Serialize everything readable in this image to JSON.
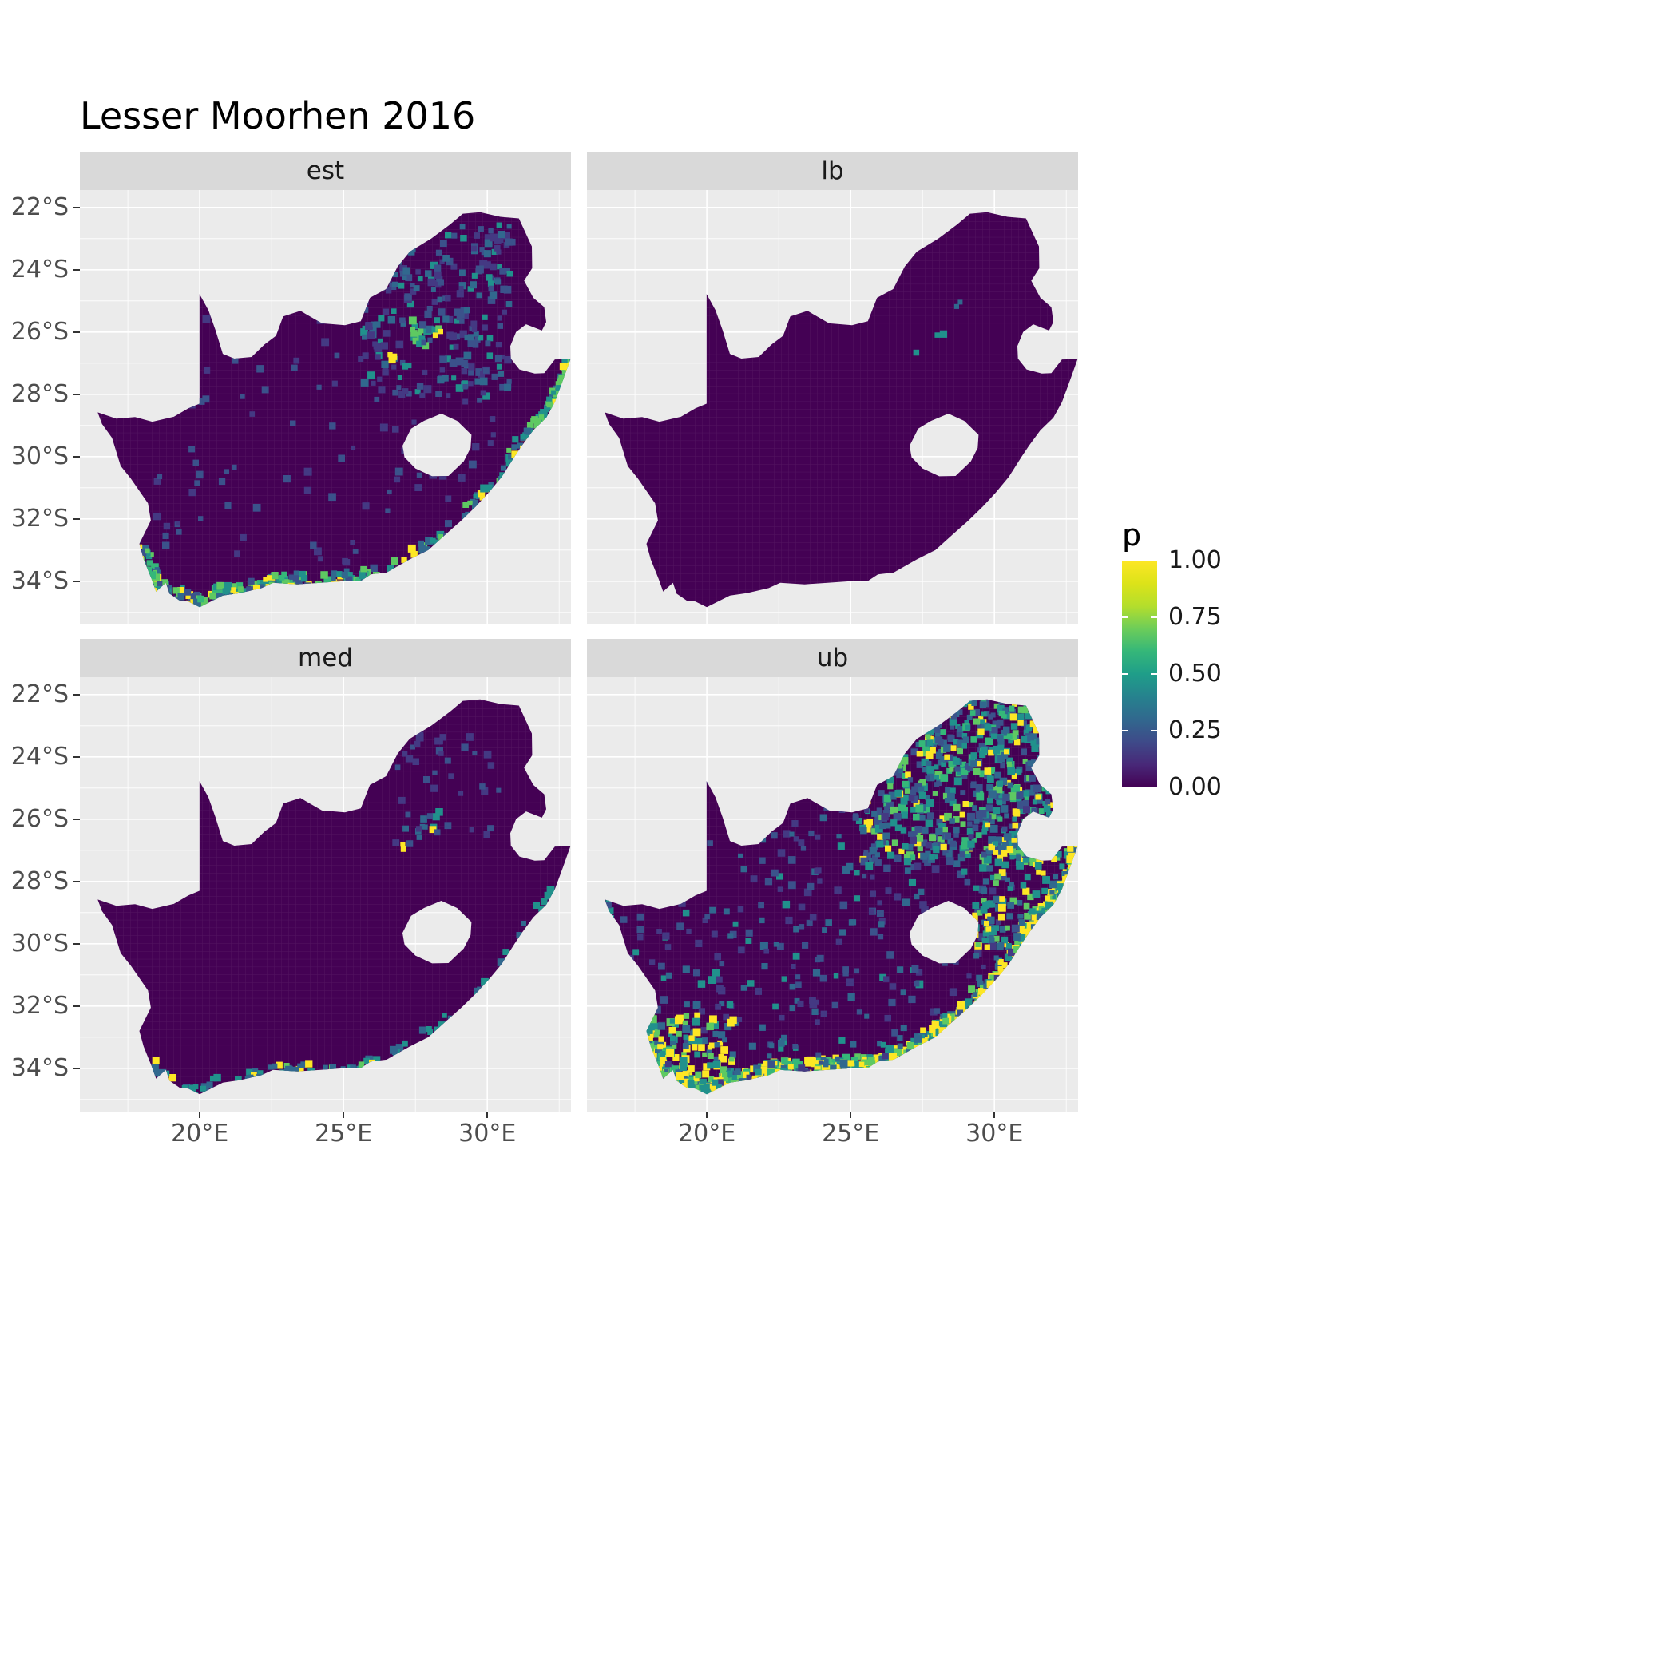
{
  "chart_data": {
    "type": "heatmap",
    "title": "Lesser Moorhen 2016",
    "facets": [
      {
        "id": "est",
        "label": "est"
      },
      {
        "id": "lb",
        "label": "lb"
      },
      {
        "id": "med",
        "label": "med"
      },
      {
        "id": "ub",
        "label": "ub"
      }
    ],
    "legend": {
      "title": "p",
      "ticks": [
        {
          "label": "1.00",
          "value": 1.0
        },
        {
          "label": "0.75",
          "value": 0.75
        },
        {
          "label": "0.50",
          "value": 0.5
        },
        {
          "label": "0.25",
          "value": 0.25
        },
        {
          "label": "0.00",
          "value": 0.0
        }
      ]
    },
    "axes": {
      "x_ticks": [
        {
          "label": "20°E",
          "lon": 20
        },
        {
          "label": "25°E",
          "lon": 25
        },
        {
          "label": "30°E",
          "lon": 30
        }
      ],
      "y_ticks": [
        {
          "label": "22°S",
          "lat": 22
        },
        {
          "label": "24°S",
          "lat": 24
        },
        {
          "label": "26°S",
          "lat": 26
        },
        {
          "label": "28°S",
          "lat": 28
        },
        {
          "label": "30°S",
          "lat": 30
        },
        {
          "label": "32°S",
          "lat": 32
        },
        {
          "label": "34°S",
          "lat": 34
        }
      ],
      "x_minor": [
        17.5,
        22.5,
        27.5,
        32.5
      ],
      "y_minor": [
        23,
        25,
        27,
        29,
        31,
        33,
        35
      ]
    },
    "palette": {
      "name": "viridis",
      "stops": [
        {
          "v": 0.0,
          "c": "#440154"
        },
        {
          "v": 0.1,
          "c": "#482878"
        },
        {
          "v": 0.2,
          "c": "#3E4A89"
        },
        {
          "v": 0.3,
          "c": "#31688E"
        },
        {
          "v": 0.4,
          "c": "#26828E"
        },
        {
          "v": 0.5,
          "c": "#1F9E89"
        },
        {
          "v": 0.6,
          "c": "#35B779"
        },
        {
          "v": 0.7,
          "c": "#6DCD59"
        },
        {
          "v": 0.8,
          "c": "#B4DE2C"
        },
        {
          "v": 0.9,
          "c": "#DCE319"
        },
        {
          "v": 1.0,
          "c": "#FDE725"
        }
      ]
    },
    "map_fill": "#440154",
    "panel": {
      "bg": "#EBEBEB",
      "strip_bg": "#D9D9D9",
      "grid_major": "#FFFFFF",
      "grid_minor": "#FFFFFF"
    },
    "geo": {
      "lon_range": [
        15.83,
        32.91
      ],
      "lat_range": [
        21.44,
        35.39
      ],
      "outline": [
        [
          16.45,
          28.58
        ],
        [
          17.1,
          28.78
        ],
        [
          17.75,
          28.73
        ],
        [
          18.35,
          28.88
        ],
        [
          19.1,
          28.72
        ],
        [
          19.6,
          28.45
        ],
        [
          19.99,
          28.3
        ],
        [
          19.99,
          24.78
        ],
        [
          20.3,
          25.3
        ],
        [
          20.55,
          25.95
        ],
        [
          20.8,
          26.7
        ],
        [
          21.2,
          26.85
        ],
        [
          21.8,
          26.8
        ],
        [
          22.25,
          26.4
        ],
        [
          22.65,
          26.12
        ],
        [
          22.9,
          25.5
        ],
        [
          23.5,
          25.32
        ],
        [
          24.25,
          25.72
        ],
        [
          25.05,
          25.78
        ],
        [
          25.6,
          25.65
        ],
        [
          25.92,
          24.9
        ],
        [
          26.48,
          24.62
        ],
        [
          26.88,
          23.9
        ],
        [
          27.3,
          23.42
        ],
        [
          28.05,
          23.0
        ],
        [
          28.7,
          22.55
        ],
        [
          29.15,
          22.2
        ],
        [
          29.75,
          22.15
        ],
        [
          30.45,
          22.3
        ],
        [
          31.1,
          22.35
        ],
        [
          31.55,
          23.25
        ],
        [
          31.56,
          23.95
        ],
        [
          31.28,
          24.35
        ],
        [
          31.6,
          24.9
        ],
        [
          31.98,
          25.2
        ],
        [
          32.05,
          25.68
        ],
        [
          31.9,
          25.95
        ],
        [
          31.35,
          25.75
        ],
        [
          31.0,
          26.0
        ],
        [
          30.8,
          26.45
        ],
        [
          30.82,
          26.85
        ],
        [
          31.12,
          27.2
        ],
        [
          31.65,
          27.33
        ],
        [
          31.98,
          27.32
        ],
        [
          32.35,
          26.88
        ],
        [
          32.89,
          26.87
        ],
        [
          32.65,
          27.5
        ],
        [
          32.35,
          28.25
        ],
        [
          32.05,
          28.75
        ],
        [
          31.6,
          29.15
        ],
        [
          31.2,
          29.65
        ],
        [
          30.95,
          30.0
        ],
        [
          30.5,
          30.65
        ],
        [
          30.05,
          31.15
        ],
        [
          29.6,
          31.6
        ],
        [
          29.1,
          32.05
        ],
        [
          28.55,
          32.5
        ],
        [
          27.95,
          33.0
        ],
        [
          27.3,
          33.3
        ],
        [
          26.5,
          33.72
        ],
        [
          25.95,
          33.78
        ],
        [
          25.62,
          33.98
        ],
        [
          25.0,
          34.0
        ],
        [
          24.2,
          34.05
        ],
        [
          23.4,
          34.1
        ],
        [
          22.55,
          34.05
        ],
        [
          22.15,
          34.22
        ],
        [
          21.4,
          34.38
        ],
        [
          20.8,
          34.46
        ],
        [
          20.0,
          34.83
        ],
        [
          19.6,
          34.65
        ],
        [
          19.3,
          34.62
        ],
        [
          18.95,
          34.4
        ],
        [
          18.82,
          34.05
        ],
        [
          18.48,
          34.33
        ],
        [
          18.32,
          33.92
        ],
        [
          18.05,
          33.3
        ],
        [
          17.9,
          32.8
        ],
        [
          18.3,
          32.05
        ],
        [
          18.2,
          31.5
        ],
        [
          17.6,
          30.7
        ],
        [
          17.25,
          30.3
        ],
        [
          16.95,
          29.4
        ],
        [
          16.6,
          28.95
        ]
      ],
      "lesotho": [
        [
          27.05,
          29.65
        ],
        [
          27.35,
          29.1
        ],
        [
          27.8,
          28.85
        ],
        [
          28.4,
          28.62
        ],
        [
          28.95,
          28.85
        ],
        [
          29.45,
          29.3
        ],
        [
          29.42,
          29.72
        ],
        [
          29.18,
          30.15
        ],
        [
          28.65,
          30.62
        ],
        [
          28.08,
          30.63
        ],
        [
          27.5,
          30.38
        ],
        [
          27.12,
          30.02
        ]
      ],
      "coast": [
        [
          17.95,
          32.75
        ],
        [
          18.1,
          33.3
        ],
        [
          18.33,
          33.92
        ],
        [
          18.5,
          34.3
        ],
        [
          18.9,
          34.38
        ],
        [
          19.3,
          34.6
        ],
        [
          19.7,
          34.75
        ],
        [
          20.0,
          34.82
        ],
        [
          20.6,
          34.5
        ],
        [
          21.2,
          34.42
        ],
        [
          21.9,
          34.3
        ],
        [
          22.4,
          34.12
        ],
        [
          23.0,
          34.1
        ],
        [
          23.7,
          34.08
        ],
        [
          24.5,
          34.02
        ],
        [
          25.3,
          34.0
        ],
        [
          25.62,
          33.96
        ],
        [
          26.3,
          33.78
        ],
        [
          27.0,
          33.45
        ],
        [
          27.7,
          33.1
        ],
        [
          28.3,
          32.68
        ],
        [
          28.9,
          32.25
        ],
        [
          29.45,
          31.75
        ],
        [
          29.95,
          31.25
        ],
        [
          30.45,
          30.7
        ],
        [
          30.9,
          30.1
        ],
        [
          31.2,
          29.6
        ],
        [
          31.6,
          29.15
        ],
        [
          32.0,
          28.8
        ],
        [
          32.3,
          28.3
        ],
        [
          32.6,
          27.6
        ],
        [
          32.85,
          26.95
        ]
      ]
    },
    "speckles": {
      "est": [
        {
          "type": "coast",
          "from": 0,
          "to": 17,
          "count": 230,
          "spread": 0.45,
          "palette": [
            "#FDE725",
            "#5EC962",
            "#35B779",
            "#21918C",
            "#31688E",
            "#3B528B"
          ],
          "weights": [
            2,
            2,
            2,
            3,
            3,
            3
          ]
        },
        {
          "type": "coast",
          "from": 17,
          "to": 31,
          "count": 90,
          "spread": 0.4,
          "palette": [
            "#21918C",
            "#31688E",
            "#5EC962",
            "#FDE725"
          ],
          "weights": [
            3,
            3,
            1,
            1
          ]
        },
        {
          "type": "area",
          "lon": 28.3,
          "lat": 25.3,
          "rlon": 2.6,
          "rlat": 2.8,
          "count": 260,
          "palette": [
            "#31688E",
            "#3B528B",
            "#21918C",
            "#443983"
          ],
          "weights": [
            3,
            4,
            2,
            4
          ]
        },
        {
          "type": "area",
          "lon": 27.9,
          "lat": 26.1,
          "rlon": 0.5,
          "rlat": 0.5,
          "count": 18,
          "palette": [
            "#FDE725",
            "#5EC962",
            "#21918C"
          ],
          "weights": [
            2,
            2,
            2
          ]
        },
        {
          "type": "area",
          "lon": 26.8,
          "lat": 26.9,
          "rlon": 0.2,
          "rlat": 0.2,
          "count": 3,
          "palette": [
            "#FDE725"
          ],
          "weights": [
            1
          ]
        },
        {
          "type": "area",
          "lon": 24.5,
          "lat": 29.5,
          "rlon": 6.0,
          "rlat": 4.0,
          "count": 120,
          "palette": [
            "#3B528B",
            "#443983"
          ],
          "weights": [
            1,
            1
          ]
        },
        {
          "type": "coast",
          "from": 27,
          "to": 31,
          "count": 50,
          "spread": 0.3,
          "palette": [
            "#FDE725",
            "#5EC962",
            "#21918C"
          ],
          "weights": [
            1,
            2,
            2
          ]
        }
      ],
      "lb": [
        {
          "type": "area",
          "lon": 28.15,
          "lat": 26.05,
          "rlon": 0.15,
          "rlat": 0.15,
          "count": 2,
          "palette": [
            "#FDE725",
            "#21918C"
          ],
          "weights": [
            1,
            1
          ]
        },
        {
          "type": "area",
          "lon": 27.2,
          "lat": 26.6,
          "rlon": 0.1,
          "rlat": 0.1,
          "count": 1,
          "palette": [
            "#21918C"
          ],
          "weights": [
            1
          ]
        },
        {
          "type": "area",
          "lon": 28.6,
          "lat": 24.9,
          "rlon": 0.3,
          "rlat": 0.3,
          "count": 2,
          "palette": [
            "#31688E"
          ],
          "weights": [
            1
          ]
        }
      ],
      "med": [
        {
          "type": "area",
          "lon": 28.0,
          "lat": 26.0,
          "rlon": 0.4,
          "rlat": 0.4,
          "count": 8,
          "palette": [
            "#FDE725",
            "#21918C",
            "#31688E"
          ],
          "weights": [
            2,
            2,
            2
          ]
        },
        {
          "type": "area",
          "lon": 27.0,
          "lat": 26.9,
          "rlon": 0.1,
          "rlat": 0.1,
          "count": 2,
          "palette": [
            "#FDE725"
          ],
          "weights": [
            1
          ]
        },
        {
          "type": "area",
          "lon": 28.6,
          "lat": 25.0,
          "rlon": 1.8,
          "rlat": 1.8,
          "count": 40,
          "palette": [
            "#3B528B",
            "#443983",
            "#31688E"
          ],
          "weights": [
            2,
            3,
            1
          ]
        },
        {
          "type": "coast",
          "from": 2,
          "to": 17,
          "count": 60,
          "spread": 0.3,
          "palette": [
            "#21918C",
            "#31688E",
            "#5EC962",
            "#FDE725"
          ],
          "weights": [
            3,
            3,
            1,
            1
          ]
        },
        {
          "type": "coast",
          "from": 17,
          "to": 31,
          "count": 30,
          "spread": 0.3,
          "palette": [
            "#31688E",
            "#21918C"
          ],
          "weights": [
            2,
            2
          ]
        }
      ],
      "ub": [
        {
          "type": "area",
          "lon": 28.7,
          "lat": 24.8,
          "rlon": 3.3,
          "rlat": 2.6,
          "count": 700,
          "palette": [
            "#21918C",
            "#31688E",
            "#35B779",
            "#5EC962",
            "#FDE725",
            "#3B528B"
          ],
          "weights": [
            4,
            4,
            2,
            2,
            2,
            4
          ]
        },
        {
          "type": "coast",
          "from": 0,
          "to": 17,
          "count": 380,
          "spread": 0.5,
          "palette": [
            "#FDE725",
            "#5EC962",
            "#35B779",
            "#21918C",
            "#31688E"
          ],
          "weights": [
            5,
            3,
            2,
            2,
            2
          ]
        },
        {
          "type": "coast",
          "from": 17,
          "to": 31,
          "count": 260,
          "spread": 0.45,
          "palette": [
            "#FDE725",
            "#5EC962",
            "#21918C",
            "#31688E"
          ],
          "weights": [
            5,
            2,
            2,
            2
          ]
        },
        {
          "type": "area",
          "lon": 24.0,
          "lat": 29.5,
          "rlon": 7.5,
          "rlat": 5.0,
          "count": 450,
          "palette": [
            "#3B528B",
            "#31688E",
            "#21918C",
            "#443983"
          ],
          "weights": [
            3,
            3,
            2,
            4
          ]
        },
        {
          "type": "area",
          "lon": 30.8,
          "lat": 28.5,
          "rlon": 1.5,
          "rlat": 2.0,
          "count": 150,
          "palette": [
            "#21918C",
            "#5EC962",
            "#FDE725",
            "#31688E"
          ],
          "weights": [
            3,
            2,
            2,
            3
          ]
        },
        {
          "type": "area",
          "lon": 19.5,
          "lat": 33.5,
          "rlon": 1.5,
          "rlat": 1.2,
          "count": 120,
          "palette": [
            "#21918C",
            "#5EC962",
            "#FDE725",
            "#31688E"
          ],
          "weights": [
            2,
            2,
            3,
            2
          ]
        }
      ]
    }
  }
}
